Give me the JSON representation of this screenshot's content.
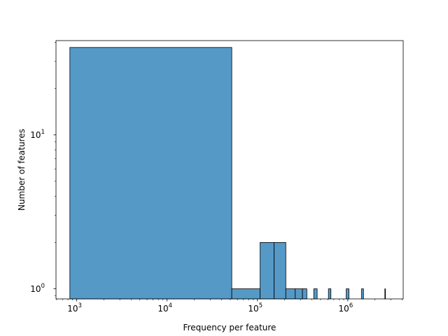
{
  "chart_data": {
    "type": "bar",
    "title": "",
    "xlabel": "Frequency per feature",
    "ylabel": "Number of features",
    "x_scale": "log",
    "y_scale": "log",
    "xlim": [
      590,
      4100000
    ],
    "ylim": [
      0.86,
      41
    ],
    "bar_color": "#5599c7",
    "edge_color": "#000000",
    "grid": false,
    "x_ticks": [
      {
        "value": 1000,
        "base": "10",
        "exp": "3"
      },
      {
        "value": 10000,
        "base": "10",
        "exp": "4"
      },
      {
        "value": 100000,
        "base": "10",
        "exp": "5"
      },
      {
        "value": 1000000,
        "base": "10",
        "exp": "6"
      }
    ],
    "y_ticks": [
      {
        "value": 1,
        "base": "10",
        "exp": "0"
      },
      {
        "value": 10,
        "base": "10",
        "exp": "1"
      }
    ],
    "bins": [
      {
        "x0": 840,
        "x1": 52000,
        "count": 37
      },
      {
        "x0": 52000,
        "x1": 107000,
        "count": 1
      },
      {
        "x0": 107000,
        "x1": 153000,
        "count": 2
      },
      {
        "x0": 153000,
        "x1": 206000,
        "count": 2
      },
      {
        "x0": 206000,
        "x1": 262000,
        "count": 1
      },
      {
        "x0": 262000,
        "x1": 315000,
        "count": 1
      },
      {
        "x0": 315000,
        "x1": 352000,
        "count": 1
      },
      {
        "x0": 420000,
        "x1": 458000,
        "count": 1
      },
      {
        "x0": 610000,
        "x1": 650000,
        "count": 1
      },
      {
        "x0": 960000,
        "x1": 1030000,
        "count": 1
      },
      {
        "x0": 1420000,
        "x1": 1490000,
        "count": 1
      },
      {
        "x0": 2570000,
        "x1": 2600000,
        "count": 1
      }
    ]
  }
}
